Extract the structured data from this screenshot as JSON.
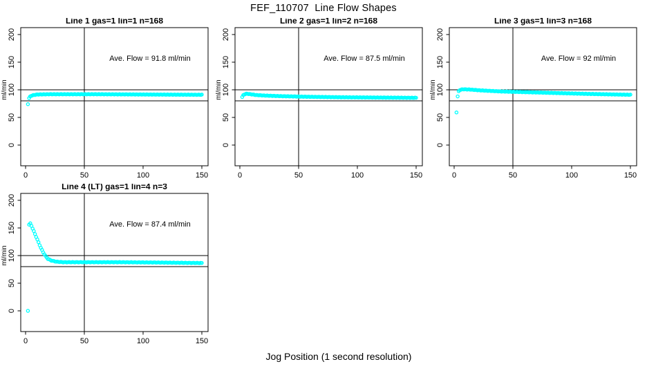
{
  "figure": {
    "title": "FEF_110707  Line Flow Shapes",
    "xlabel": "Jog Position (1 second resolution)"
  },
  "axes": {
    "x_ticks": [
      0,
      50,
      100,
      150
    ],
    "y_ticks": [
      0,
      50,
      100,
      150,
      200
    ],
    "ylabel": "ml/min",
    "ref_lines": [
      100,
      80
    ],
    "vline_x": 50,
    "x_range": [
      0,
      150
    ],
    "y_range": [
      0,
      200
    ],
    "point_color": "#00ffff",
    "line_color": "#000000"
  },
  "chart_data": [
    {
      "type": "scatter",
      "title": "Line 1 gas=1 lin=1 n=168",
      "ave_flow_label": "Ave. Flow =  91.8  ml/min",
      "ave_flow": 91.8,
      "n": 168,
      "points_drawn": 167,
      "outliers": [
        [
          2,
          74
        ]
      ],
      "keypoints": [
        [
          3,
          85
        ],
        [
          4,
          88
        ],
        [
          5,
          89.5
        ],
        [
          7,
          90.5
        ],
        [
          10,
          91.5
        ],
        [
          20,
          92
        ],
        [
          60,
          92
        ],
        [
          100,
          91.5
        ],
        [
          150,
          91
        ]
      ]
    },
    {
      "type": "scatter",
      "title": "Line 2 gas=1 lin=2 n=168",
      "ave_flow_label": "Ave. Flow =  87.5  ml/min",
      "ave_flow": 87.5,
      "n": 168,
      "points_drawn": 168,
      "outliers": [],
      "keypoints": [
        [
          2,
          87
        ],
        [
          3,
          90.5
        ],
        [
          4,
          92
        ],
        [
          6,
          93
        ],
        [
          9,
          92
        ],
        [
          14,
          90.5
        ],
        [
          22,
          89.5
        ],
        [
          35,
          88.5
        ],
        [
          55,
          87.5
        ],
        [
          85,
          86.5
        ],
        [
          115,
          86
        ],
        [
          150,
          85.5
        ]
      ]
    },
    {
      "type": "scatter",
      "title": "Line 3 gas=1 lin=3 n=168",
      "ave_flow_label": "Ave. Flow =  92  ml/min",
      "ave_flow": 92,
      "n": 168,
      "points_drawn": 167,
      "outliers": [
        [
          2,
          59
        ]
      ],
      "keypoints": [
        [
          3,
          88
        ],
        [
          3.5,
          94
        ],
        [
          4,
          98
        ],
        [
          5,
          100
        ],
        [
          8,
          101
        ],
        [
          13,
          100.5
        ],
        [
          22,
          99
        ],
        [
          40,
          97
        ],
        [
          65,
          95.5
        ],
        [
          90,
          94
        ],
        [
          115,
          92.5
        ],
        [
          150,
          91
        ]
      ]
    },
    {
      "type": "scatter",
      "title": "Line 4 (LT) gas=1 lin=4 n=3",
      "ave_flow_label": "Ave. Flow =  87.4  ml/min",
      "ave_flow": 87.4,
      "n": 3,
      "points_drawn": 148,
      "outliers": [
        [
          2,
          0
        ]
      ],
      "keypoints": [
        [
          3,
          156
        ],
        [
          4,
          158
        ],
        [
          5,
          154
        ],
        [
          6,
          149
        ],
        [
          7,
          144
        ],
        [
          9,
          134
        ],
        [
          11,
          124
        ],
        [
          13,
          114
        ],
        [
          15,
          106
        ],
        [
          17,
          99
        ],
        [
          19,
          94
        ],
        [
          22,
          91
        ],
        [
          26,
          89
        ],
        [
          32,
          88
        ],
        [
          50,
          88
        ],
        [
          80,
          88
        ],
        [
          110,
          87.5
        ],
        [
          150,
          86.5
        ]
      ]
    }
  ]
}
